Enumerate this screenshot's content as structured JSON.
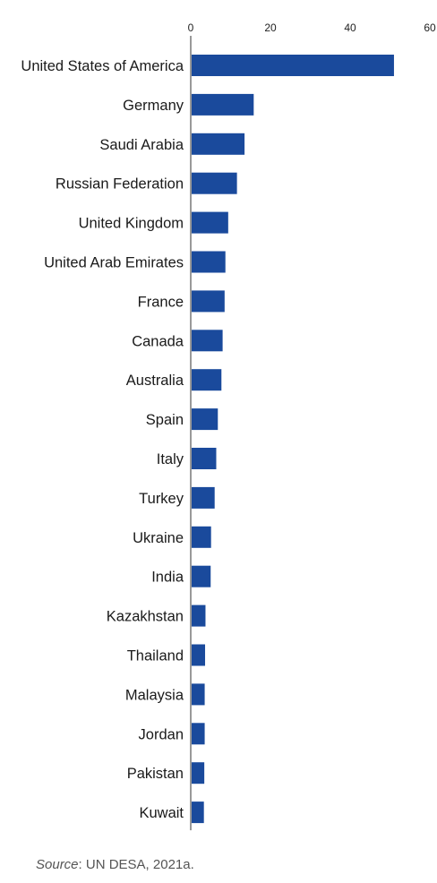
{
  "chart_data": {
    "type": "bar",
    "orientation": "horizontal",
    "categories": [
      "United States of America",
      "Germany",
      "Saudi Arabia",
      "Russian Federation",
      "United Kingdom",
      "United Arab Emirates",
      "France",
      "Canada",
      "Australia",
      "Spain",
      "Italy",
      "Turkey",
      "Ukraine",
      "India",
      "Kazakhstan",
      "Thailand",
      "Malaysia",
      "Jordan",
      "Pakistan",
      "Kuwait"
    ],
    "values": [
      51.0,
      15.8,
      13.5,
      11.6,
      9.4,
      8.7,
      8.5,
      8.0,
      7.7,
      6.8,
      6.4,
      6.0,
      5.1,
      5.0,
      3.7,
      3.6,
      3.5,
      3.5,
      3.4,
      3.3
    ],
    "xlim": [
      0,
      60
    ],
    "xticks": [
      "0",
      "20",
      "40",
      "60"
    ],
    "axis_position": "top",
    "grid": false,
    "bar_color": "#1a4a9c"
  },
  "source": {
    "prefix": "Source",
    "text": ": UN DESA, 2021a."
  }
}
